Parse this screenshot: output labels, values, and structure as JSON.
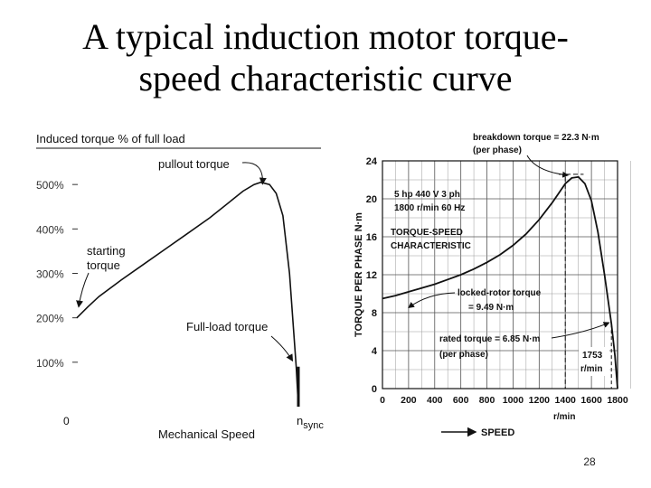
{
  "slide": {
    "title_line1": "A typical induction motor torque-",
    "title_line2": "speed characteristic curve",
    "page_number": "28"
  },
  "colors": {
    "ink": "#111111",
    "grid": "#555555",
    "background": "#ffffff"
  },
  "chart_data": [
    {
      "type": "line",
      "title": "Induced torque % of full load",
      "xlabel": "Mechanical Speed",
      "ylabel": "Induced torque % of full load",
      "x_tick_labels": {
        "origin": "0",
        "sync": "n",
        "sync_subscript": "sync"
      },
      "yticks": [
        {
          "value": 500,
          "label": "500%"
        },
        {
          "value": 400,
          "label": "400%"
        },
        {
          "value": 300,
          "label": "300%"
        },
        {
          "value": 200,
          "label": "200%"
        },
        {
          "value": 100,
          "label": "100%"
        }
      ],
      "xlim": [
        0,
        1
      ],
      "ylim": [
        0,
        600
      ],
      "grid": false,
      "series": [
        {
          "x": [
            0,
            0.05,
            0.1,
            0.2,
            0.3,
            0.4,
            0.5,
            0.6,
            0.7,
            0.75,
            0.8,
            0.83,
            0.87,
            0.9,
            0.93,
            0.96,
            0.99,
            1.0
          ],
          "y": [
            200,
            225,
            248,
            285,
            320,
            355,
            390,
            425,
            465,
            485,
            500,
            505,
            500,
            480,
            430,
            300,
            90,
            0
          ]
        }
      ],
      "annotations": [
        {
          "label": "pullout torque",
          "x": 0.83,
          "y": 505
        },
        {
          "label_lines": [
            "starting",
            "torque"
          ],
          "x": 0,
          "y": 200
        },
        {
          "label": "Full-load torque",
          "x": 0.99,
          "y": 95
        }
      ]
    },
    {
      "type": "line",
      "xlabel": "SPEED",
      "xunit": "r/min",
      "ylabel": "TORQUE PER PHASE N·m",
      "xticks": [
        0,
        200,
        400,
        600,
        800,
        1000,
        1200,
        1400,
        1600,
        1800
      ],
      "yticks": [
        0,
        4,
        8,
        12,
        16,
        20,
        24
      ],
      "xlim": [
        0,
        1800
      ],
      "ylim": [
        0,
        24
      ],
      "grid": true,
      "series": [
        {
          "x": [
            0,
            100,
            200,
            300,
            400,
            500,
            600,
            700,
            800,
            900,
            1000,
            1100,
            1200,
            1300,
            1350,
            1400,
            1450,
            1500,
            1550,
            1600,
            1650,
            1700,
            1753,
            1780,
            1800
          ],
          "y": [
            9.49,
            9.8,
            10.2,
            10.6,
            11.0,
            11.5,
            12.0,
            12.6,
            13.3,
            14.1,
            15.1,
            16.3,
            17.8,
            19.6,
            20.6,
            21.6,
            22.2,
            22.3,
            21.6,
            19.8,
            16.5,
            12.0,
            6.85,
            3.5,
            0
          ]
        }
      ],
      "annotations": {
        "header": [
          "5 hp 440 V 3 ph",
          "1800 r/min 60 Hz"
        ],
        "characteristic": [
          "TORQUE-SPEED",
          "CHARACTERISTIC"
        ],
        "breakdown": {
          "lines": [
            "breakdown torque = 22.3 N·m",
            "(per phase)"
          ],
          "x": 1500,
          "y": 22.3
        },
        "locked_rotor": {
          "lines": [
            "locked-rotor torque",
            "= 9.49 N·m"
          ],
          "x": 0,
          "y": 9.49
        },
        "rated": {
          "lines": [
            "rated torque = 6.85 N·m",
            "(per phase)"
          ],
          "x": 1753,
          "y": 6.85
        },
        "rated_speed": {
          "lines": [
            "1753",
            "r/min"
          ]
        }
      }
    }
  ]
}
